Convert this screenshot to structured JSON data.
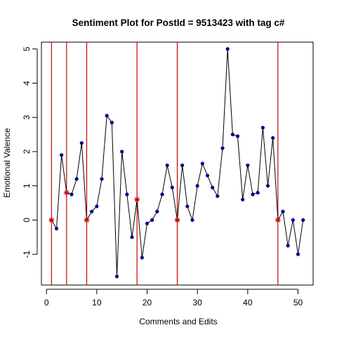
{
  "chart_data": {
    "type": "line",
    "title": "Sentiment Plot for PostId =  9513423  with tag  c#",
    "xlabel": "Comments and Edits",
    "ylabel": "Emotional Valence",
    "xlim": [
      -1,
      53
    ],
    "ylim": [
      -1.9,
      5.2
    ],
    "xticks": [
      0,
      10,
      20,
      30,
      40,
      50
    ],
    "yticks": [
      -1,
      0,
      1,
      2,
      3,
      4,
      5
    ],
    "series": [
      {
        "x": [
          1,
          2,
          3,
          4,
          5,
          6,
          7,
          8,
          9,
          10,
          11,
          12,
          13,
          14,
          15,
          16,
          17,
          18,
          19,
          20,
          21,
          22,
          23,
          24,
          25,
          26,
          27,
          28,
          29,
          30,
          31,
          32,
          33,
          34,
          35,
          36,
          37,
          38,
          39,
          40,
          41,
          42,
          43,
          44,
          45,
          46,
          47,
          48,
          49,
          50,
          51
        ],
        "y": [
          0,
          -0.25,
          1.9,
          0.8,
          0.75,
          1.2,
          2.25,
          0,
          0.25,
          0.4,
          1.2,
          3.05,
          2.85,
          -1.65,
          2.0,
          0.75,
          -0.5,
          0.6,
          -1.1,
          -0.1,
          0,
          0.25,
          0.75,
          1.6,
          0.95,
          0,
          1.6,
          0.4,
          0,
          1.0,
          1.65,
          1.3,
          0.95,
          0.7,
          2.1,
          5.0,
          2.5,
          2.45,
          0.6,
          1.6,
          0.75,
          0.8,
          2.7,
          1.0,
          2.4,
          0,
          0.25,
          -0.75,
          0,
          -1.0,
          0
        ]
      }
    ],
    "edit_markers": [
      1,
      4,
      8,
      18,
      26,
      46
    ],
    "edit_values": [
      0,
      0.8,
      0,
      0.6,
      0,
      0
    ],
    "vlines": [
      1,
      4,
      8,
      18,
      26,
      46
    ],
    "colors": {
      "line": "#000000",
      "point": "#00008b",
      "vline": "#cc0000",
      "edit_marker": "#cc0000"
    },
    "grid": false,
    "legend": "none"
  }
}
